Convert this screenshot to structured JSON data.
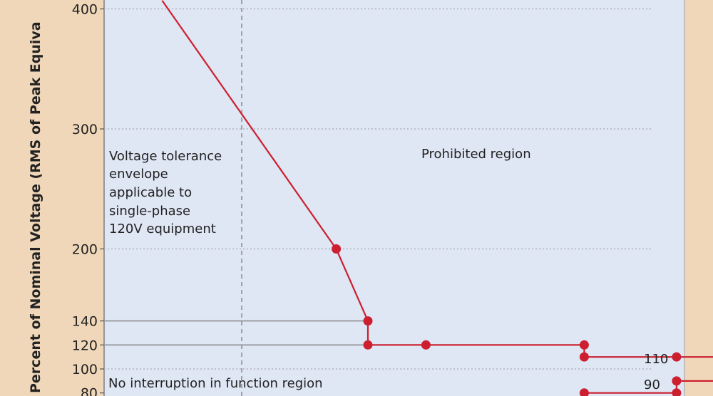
{
  "chart_data": {
    "type": "line",
    "title": "",
    "ylabel": "Percent of Nominal Voltage (RMS of Peak Equiva",
    "xlabel": "",
    "ylim": [
      77,
      407
    ],
    "grid": true,
    "y_ticks": [
      {
        "value": 400,
        "label": "400"
      },
      {
        "value": 300,
        "label": "300"
      },
      {
        "value": 200,
        "label": "200"
      },
      {
        "value": 140,
        "label": "140"
      },
      {
        "value": 120,
        "label": "120"
      },
      {
        "value": 100,
        "label": "100"
      },
      {
        "value": 80,
        "label": "80"
      }
    ],
    "dotted_gridlines": [
      400,
      300,
      200,
      100
    ],
    "solid_gridlines": [
      140,
      120
    ],
    "regions": {
      "prohibited": "Prohibited region",
      "no_interruption": "No interruption in function region"
    },
    "note_lines": [
      "Voltage tolerance",
      "envelope",
      "applicable to",
      "single-phase",
      "120V equipment"
    ],
    "series": [
      {
        "color": "#cc1f2f",
        "points": [
          [
            0.22,
            407
          ],
          [
            0.88,
            200
          ],
          [
            1.0,
            140
          ],
          [
            1.0,
            120
          ],
          [
            1.22,
            120
          ],
          [
            1.82,
            120
          ],
          [
            1.82,
            110
          ],
          [
            2.17,
            110
          ],
          [
            2.4,
            110
          ]
        ],
        "markers": [
          [
            0.88,
            200
          ],
          [
            1.0,
            140
          ],
          [
            1.0,
            120
          ],
          [
            1.22,
            120
          ],
          [
            1.82,
            120
          ],
          [
            1.82,
            110
          ],
          [
            2.17,
            110
          ]
        ],
        "end_label": "110"
      },
      {
        "color": "#cc1f2f",
        "points": [
          [
            1.82,
            80
          ],
          [
            2.17,
            80
          ],
          [
            2.17,
            90
          ],
          [
            2.4,
            90
          ]
        ],
        "markers": [
          [
            1.82,
            80
          ],
          [
            2.17,
            80
          ],
          [
            2.17,
            90
          ]
        ],
        "end_label": "90"
      }
    ],
    "colors": {
      "plot_bg": "#dfe6f4",
      "page_bg": "#f1d7b9",
      "curve": "#cc1f2f",
      "grid": "#a9aab0",
      "solid_grid": "#8f9096",
      "text": "#222222"
    }
  }
}
